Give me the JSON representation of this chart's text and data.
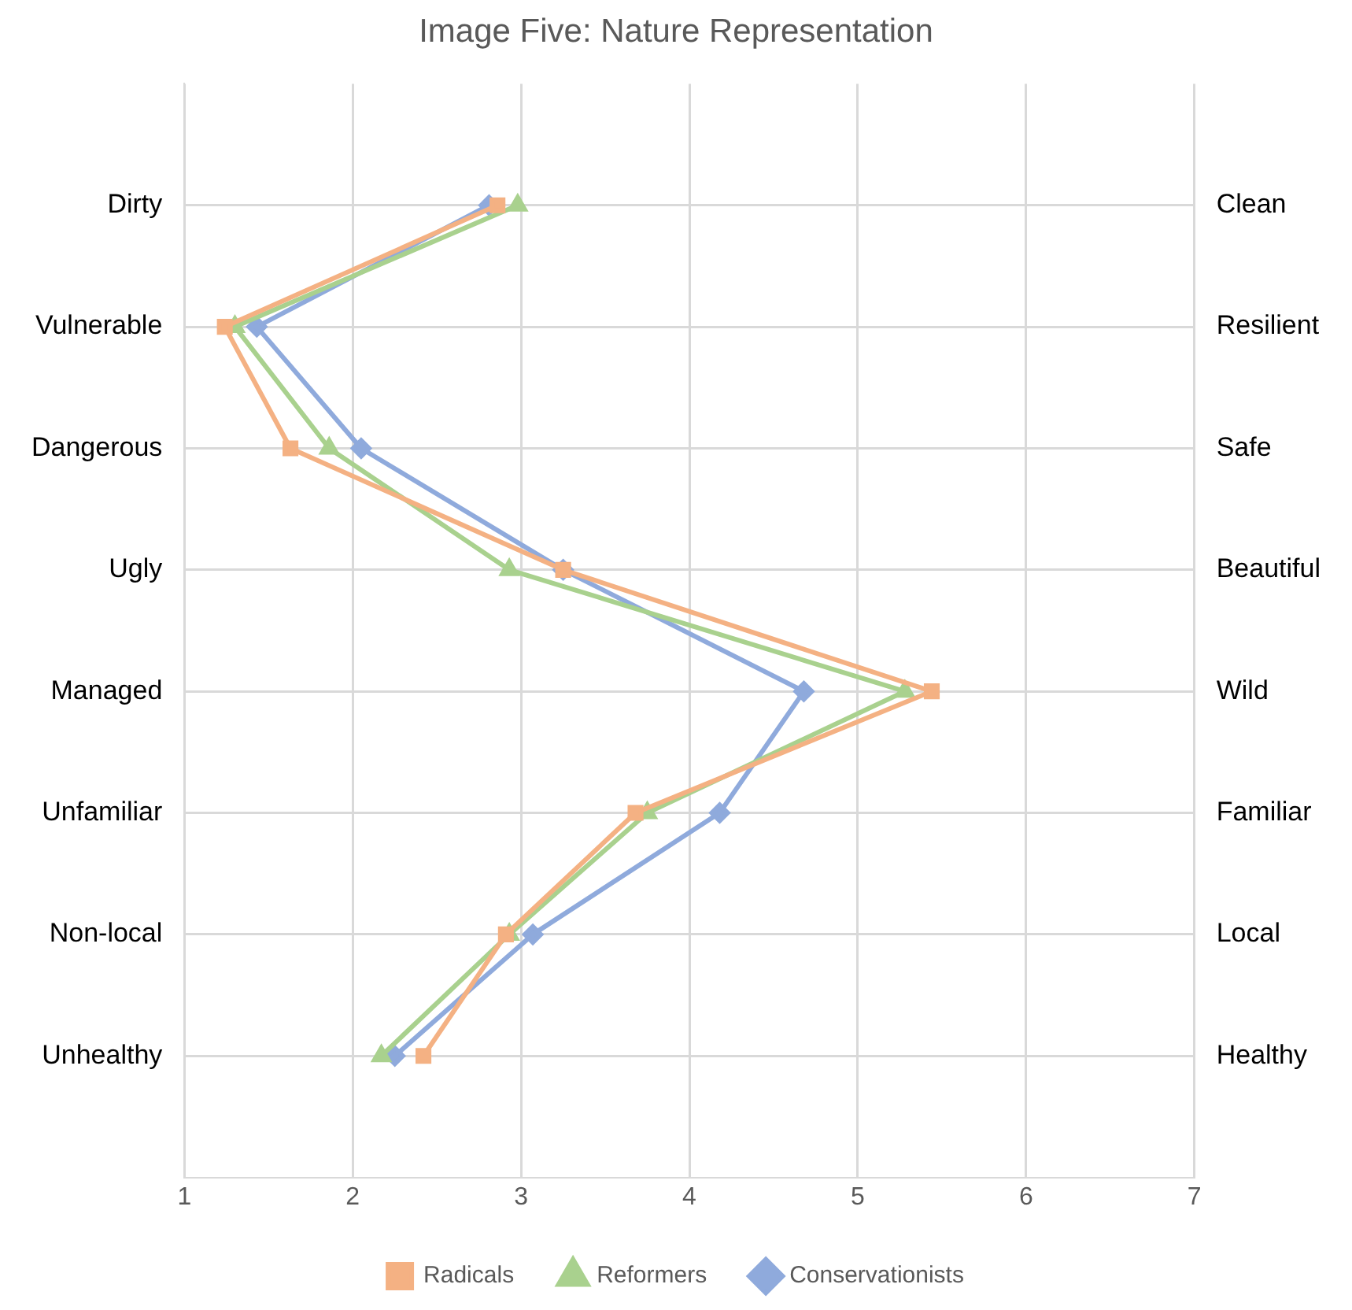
{
  "chart_data": {
    "type": "line",
    "orientation": "horizontal",
    "title": "Image Five: Nature Representation",
    "categories": [
      "Dirty",
      "Vulnerable",
      "Dangerous",
      "Ugly",
      "Managed",
      "Unfamiliar",
      "Non-local",
      "Unhealthy"
    ],
    "y2_categories": [
      "Clean",
      "Resilient",
      "Safe",
      "Beautiful",
      "Wild",
      "Familiar",
      "Local",
      "Healthy"
    ],
    "series": [
      {
        "name": "Radicals",
        "color": "#f4b183",
        "marker": "square",
        "values": [
          2.86,
          1.24,
          1.63,
          3.25,
          5.44,
          3.68,
          2.91,
          2.42
        ]
      },
      {
        "name": "Reformers",
        "color": "#a9d18e",
        "marker": "triangle",
        "values": [
          2.98,
          1.3,
          1.86,
          2.93,
          5.28,
          3.75,
          2.93,
          2.17
        ]
      },
      {
        "name": "Conservationists",
        "color": "#8faadc",
        "marker": "diamond",
        "values": [
          2.81,
          1.43,
          2.05,
          3.25,
          4.68,
          4.18,
          3.07,
          2.25
        ]
      }
    ],
    "xlim": [
      1,
      7
    ],
    "xticks": [
      1,
      2,
      3,
      4,
      5,
      6,
      7
    ],
    "grid": true,
    "legend": "bottom"
  }
}
